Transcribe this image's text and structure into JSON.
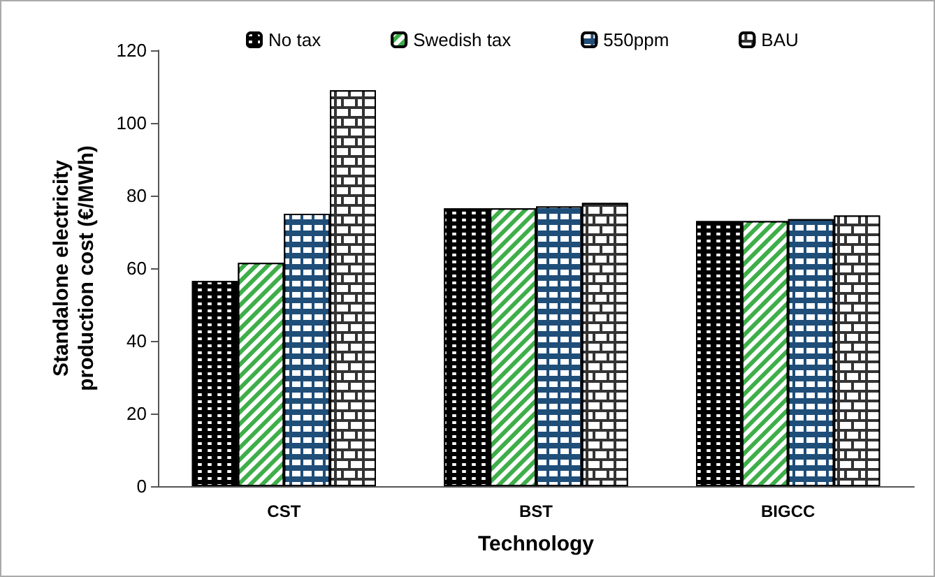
{
  "chart_data": {
    "type": "bar",
    "xlabel": "Technology",
    "ylabel": "Standalone electricity production cost (€/MWh)",
    "categories": [
      "CST",
      "BST",
      "BIGCC"
    ],
    "series": [
      {
        "name": "No tax",
        "color": "#000000",
        "values": [
          56.5,
          76.5,
          73
        ]
      },
      {
        "name": "Swedish tax",
        "color": "#3fae49",
        "values": [
          61.5,
          76.5,
          73
        ]
      },
      {
        "name": "550ppm",
        "color": "#1f4e79",
        "values": [
          75,
          77,
          73.5
        ]
      },
      {
        "name": "BAU",
        "color": "#333333",
        "values": [
          109,
          78,
          74.5
        ]
      }
    ],
    "ylim": [
      0,
      120
    ],
    "yticks": [
      0,
      20,
      40,
      60,
      80,
      100,
      120
    ],
    "grid": false,
    "legend": "top"
  }
}
